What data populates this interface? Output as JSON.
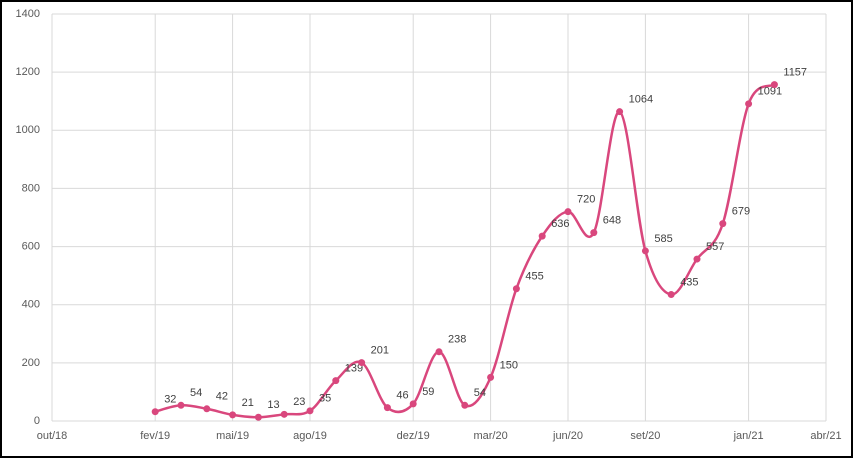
{
  "chart_data": {
    "type": "line",
    "x": [
      "2019-02",
      "2019-03",
      "2019-04",
      "2019-05",
      "2019-06",
      "2019-07",
      "2019-08",
      "2019-09",
      "2019-10",
      "2019-11",
      "2019-12",
      "2020-01",
      "2020-02",
      "2020-03",
      "2020-04",
      "2020-05",
      "2020-06",
      "2020-07",
      "2020-08",
      "2020-09",
      "2020-10",
      "2020-11",
      "2020-12",
      "2021-01",
      "2021-02"
    ],
    "values": [
      32,
      54,
      42,
      21,
      13,
      23,
      35,
      139,
      201,
      46,
      59,
      238,
      54,
      150,
      455,
      636,
      720,
      648,
      1064,
      585,
      435,
      557,
      679,
      1091,
      1157
    ],
    "color": "#d9477d",
    "xlim": [
      "2018-10",
      "2021-04"
    ],
    "xticks": [
      {
        "value": "2018-10",
        "label": "out/18"
      },
      {
        "value": "2019-02",
        "label": "fev/19"
      },
      {
        "value": "2019-05",
        "label": "mai/19"
      },
      {
        "value": "2019-08",
        "label": "ago/19"
      },
      {
        "value": "2019-12",
        "label": "dez/19"
      },
      {
        "value": "2020-03",
        "label": "mar/20"
      },
      {
        "value": "2020-06",
        "label": "jun/20"
      },
      {
        "value": "2020-09",
        "label": "set/20"
      },
      {
        "value": "2021-01",
        "label": "jan/21"
      },
      {
        "value": "2021-04",
        "label": "abr/21"
      }
    ],
    "ylim": [
      0,
      1400
    ],
    "yticks": [
      0,
      200,
      400,
      600,
      800,
      1000,
      1200,
      1400
    ],
    "grid": true,
    "smooth": true
  }
}
